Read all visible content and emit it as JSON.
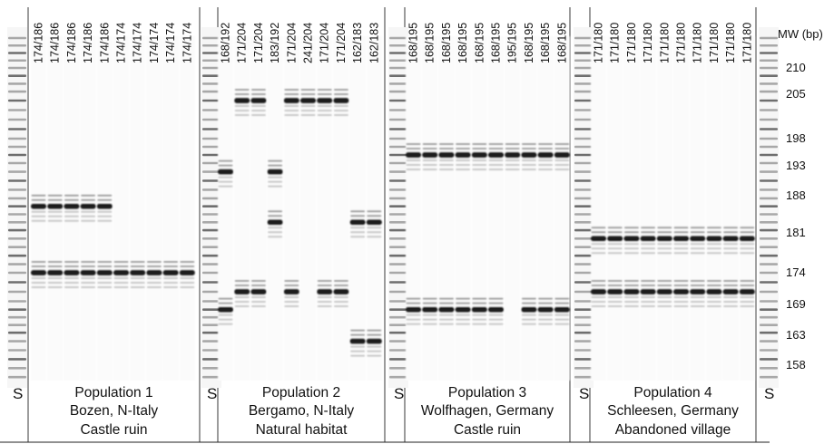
{
  "mw_axis": {
    "title": "MW (bp)",
    "ticks": [
      "210",
      "205",
      "198",
      "193",
      "188",
      "181",
      "174",
      "169",
      "163",
      "158"
    ]
  },
  "standard_label": "S",
  "populations": [
    {
      "title": "Population 1",
      "location": "Bozen, N-Italy",
      "habitat": "Castle ruin",
      "lanes": [
        "174/186",
        "174/186",
        "174/186",
        "174/186",
        "174/186",
        "174/174",
        "174/174",
        "174/174",
        "174/174",
        "174/174"
      ]
    },
    {
      "title": "Population 2",
      "location": "Bergamo, N-Italy",
      "habitat": "Natural habitat",
      "lanes": [
        "168/192",
        "171/204",
        "171/204",
        "183/192",
        "171/204",
        "241/204",
        "171/204",
        "171/204",
        "162/183",
        "162/183"
      ]
    },
    {
      "title": "Population 3",
      "location": "Wolfhagen, Germany",
      "habitat": "Castle ruin",
      "lanes": [
        "168/195",
        "168/195",
        "168/195",
        "168/195",
        "168/195",
        "168/195",
        "195/195",
        "168/195",
        "168/195",
        "168/195"
      ]
    },
    {
      "title": "Population 4",
      "location": "Schleesen, Germany",
      "habitat": "Abandoned village",
      "lanes": [
        "171/180",
        "171/180",
        "171/180",
        "171/180",
        "171/180",
        "171/180",
        "171/180",
        "171/180",
        "171/180",
        "171/180"
      ]
    }
  ]
}
